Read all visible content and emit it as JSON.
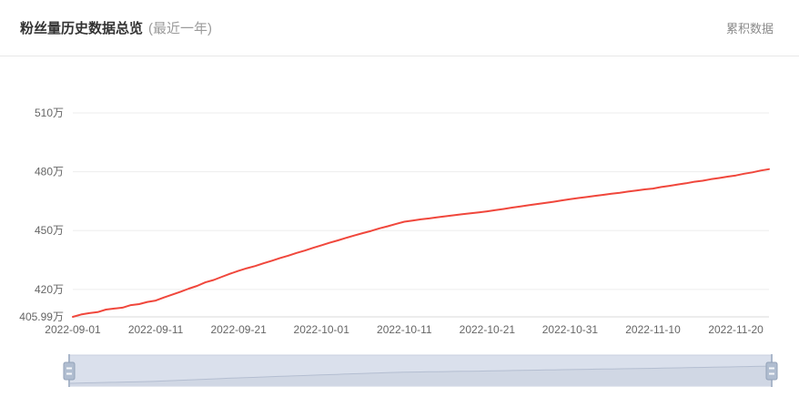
{
  "header": {
    "title": "粉丝量历史数据总览",
    "subtitle": "(最近一年)",
    "right_label": "累积数据"
  },
  "colors": {
    "line": "#f0473c",
    "gridline": "#ededed",
    "axis_line": "#d8d8d8",
    "axis_label": "#666666",
    "slider_track_fill": "#dae0ec",
    "slider_track_border": "#c9d1df",
    "slider_shadow_fill": "#d0d7e4",
    "slider_shadow_line": "#b4bed1",
    "slider_handle_line": "#aab7ca",
    "slider_handle_fill": "#b0bdd0",
    "slider_handle_border": "#93a2b9",
    "slider_handle_stripe": "#f5f7fa"
  },
  "chart_data": {
    "type": "line",
    "title": "粉丝量历史数据总览 (最近一年)",
    "series_name": "粉丝量",
    "unit": "万",
    "grid": true,
    "legend": false,
    "ylim": [
      405.99,
      510
    ],
    "y_ticks": [
      405.99,
      420,
      450,
      480,
      510
    ],
    "y_tick_labels": [
      "405.99万",
      "420万",
      "450万",
      "480万",
      "510万"
    ],
    "x_tick_labels": [
      "2022-09-01",
      "2022-09-11",
      "2022-09-21",
      "2022-10-01",
      "2022-10-11",
      "2022-10-21",
      "2022-10-31",
      "2022-11-10",
      "2022-11-20"
    ],
    "x": [
      "2022-09-01",
      "2022-09-02",
      "2022-09-03",
      "2022-09-04",
      "2022-09-05",
      "2022-09-06",
      "2022-09-07",
      "2022-09-08",
      "2022-09-09",
      "2022-09-10",
      "2022-09-11",
      "2022-09-12",
      "2022-09-13",
      "2022-09-14",
      "2022-09-15",
      "2022-09-16",
      "2022-09-17",
      "2022-09-18",
      "2022-09-19",
      "2022-09-20",
      "2022-09-21",
      "2022-09-22",
      "2022-09-23",
      "2022-09-24",
      "2022-09-25",
      "2022-09-26",
      "2022-09-27",
      "2022-09-28",
      "2022-09-29",
      "2022-09-30",
      "2022-10-01",
      "2022-10-02",
      "2022-10-03",
      "2022-10-04",
      "2022-10-05",
      "2022-10-06",
      "2022-10-07",
      "2022-10-08",
      "2022-10-09",
      "2022-10-10",
      "2022-10-11",
      "2022-10-12",
      "2022-10-13",
      "2022-10-14",
      "2022-10-15",
      "2022-10-16",
      "2022-10-17",
      "2022-10-18",
      "2022-10-19",
      "2022-10-20",
      "2022-10-21",
      "2022-10-22",
      "2022-10-23",
      "2022-10-24",
      "2022-10-25",
      "2022-10-26",
      "2022-10-27",
      "2022-10-28",
      "2022-10-29",
      "2022-10-30",
      "2022-10-31",
      "2022-11-01",
      "2022-11-02",
      "2022-11-03",
      "2022-11-04",
      "2022-11-05",
      "2022-11-06",
      "2022-11-07",
      "2022-11-08",
      "2022-11-09",
      "2022-11-10",
      "2022-11-11",
      "2022-11-12",
      "2022-11-13",
      "2022-11-14",
      "2022-11-15",
      "2022-11-16",
      "2022-11-17",
      "2022-11-18",
      "2022-11-19",
      "2022-11-20",
      "2022-11-21",
      "2022-11-22",
      "2022-11-23",
      "2022-11-24"
    ],
    "values": [
      405.99,
      407.2,
      407.9,
      408.4,
      409.7,
      410.2,
      410.7,
      412.0,
      412.5,
      413.6,
      414.3,
      415.9,
      417.3,
      418.8,
      420.4,
      421.8,
      423.6,
      424.8,
      426.4,
      428.0,
      429.5,
      430.8,
      431.9,
      433.3,
      434.6,
      436.0,
      437.2,
      438.6,
      439.8,
      441.2,
      442.5,
      443.8,
      445.0,
      446.3,
      447.5,
      448.7,
      449.8,
      451.1,
      452.2,
      453.4,
      454.5,
      455.1,
      455.7,
      456.2,
      456.8,
      457.3,
      457.8,
      458.3,
      458.8,
      459.3,
      459.8,
      460.4,
      461.0,
      461.7,
      462.3,
      462.9,
      463.5,
      464.1,
      464.7,
      465.4,
      466.0,
      466.6,
      467.1,
      467.7,
      468.2,
      468.8,
      469.3,
      469.9,
      470.4,
      471.0,
      471.4,
      472.2,
      472.8,
      473.5,
      474.1,
      474.9,
      475.4,
      476.2,
      476.8,
      477.5,
      478.1,
      479.0,
      479.7,
      480.6,
      481.3
    ]
  },
  "slider": {
    "role": "datazoom-range-slider",
    "range_start": "2022-09-01",
    "range_end": "2022-11-24"
  }
}
